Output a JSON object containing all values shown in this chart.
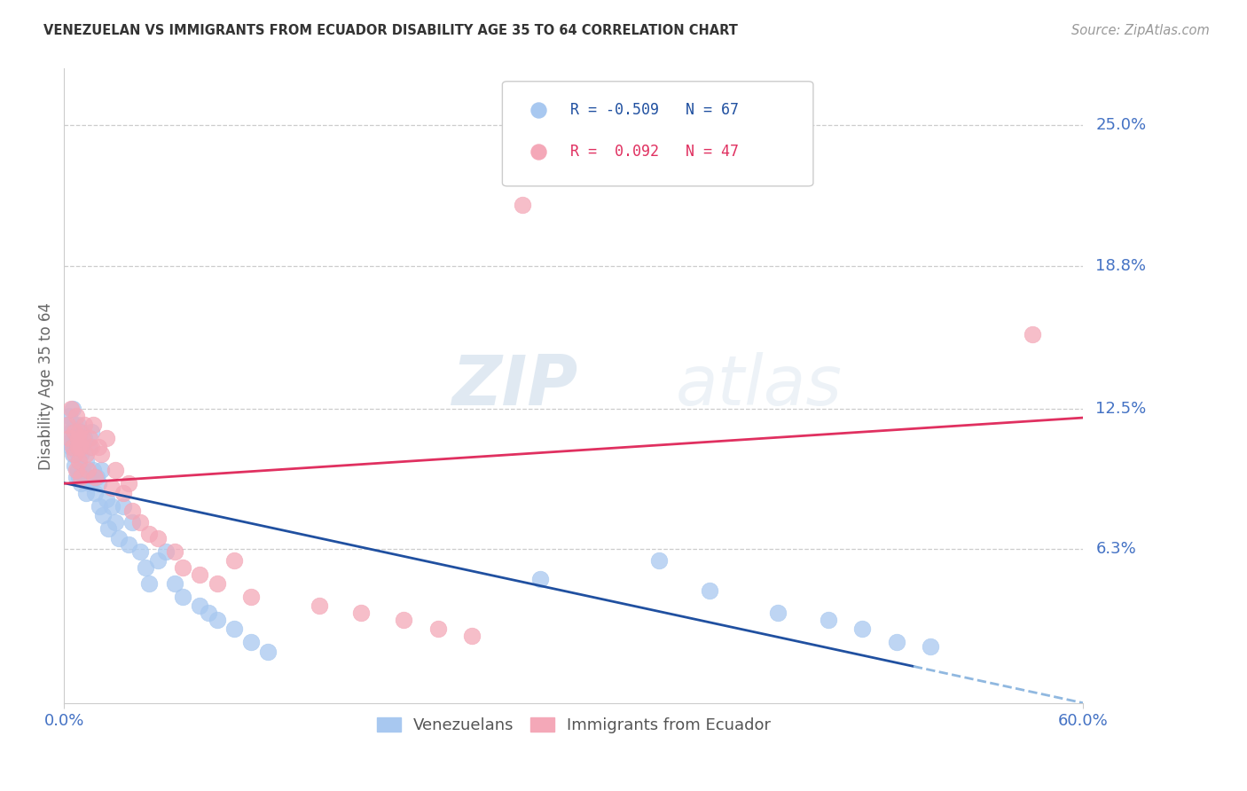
{
  "title": "VENEZUELAN VS IMMIGRANTS FROM ECUADOR DISABILITY AGE 35 TO 64 CORRELATION CHART",
  "source": "Source: ZipAtlas.com",
  "ylabel_label": "Disability Age 35 to 64",
  "ytick_labels": [
    "25.0%",
    "18.8%",
    "12.5%",
    "6.3%"
  ],
  "ytick_values": [
    0.25,
    0.188,
    0.125,
    0.063
  ],
  "xlim": [
    0.0,
    0.6
  ],
  "ylim": [
    -0.005,
    0.275
  ],
  "watermark": "ZIPatlas",
  "scatter_blue_color": "#a8c8f0",
  "scatter_pink_color": "#f4a8b8",
  "line_blue_color": "#2050a0",
  "line_pink_color": "#e03060",
  "line_blue_dashed_color": "#90b8e0",
  "axis_label_color": "#4472c4",
  "venezuelan_x": [
    0.002,
    0.003,
    0.003,
    0.004,
    0.004,
    0.005,
    0.005,
    0.005,
    0.006,
    0.006,
    0.006,
    0.007,
    0.007,
    0.008,
    0.008,
    0.008,
    0.009,
    0.009,
    0.01,
    0.01,
    0.01,
    0.011,
    0.011,
    0.012,
    0.012,
    0.013,
    0.013,
    0.014,
    0.015,
    0.015,
    0.016,
    0.017,
    0.018,
    0.019,
    0.02,
    0.021,
    0.022,
    0.023,
    0.025,
    0.026,
    0.028,
    0.03,
    0.032,
    0.035,
    0.038,
    0.04,
    0.045,
    0.048,
    0.05,
    0.055,
    0.06,
    0.065,
    0.07,
    0.08,
    0.085,
    0.09,
    0.1,
    0.11,
    0.12,
    0.28,
    0.35,
    0.38,
    0.42,
    0.45,
    0.47,
    0.49,
    0.51
  ],
  "venezuelan_y": [
    0.118,
    0.122,
    0.11,
    0.115,
    0.108,
    0.125,
    0.112,
    0.105,
    0.118,
    0.108,
    0.1,
    0.112,
    0.095,
    0.118,
    0.105,
    0.098,
    0.112,
    0.095,
    0.115,
    0.105,
    0.092,
    0.108,
    0.098,
    0.112,
    0.095,
    0.102,
    0.088,
    0.095,
    0.108,
    0.092,
    0.115,
    0.098,
    0.088,
    0.095,
    0.092,
    0.082,
    0.098,
    0.078,
    0.085,
    0.072,
    0.082,
    0.075,
    0.068,
    0.082,
    0.065,
    0.075,
    0.062,
    0.055,
    0.048,
    0.058,
    0.062,
    0.048,
    0.042,
    0.038,
    0.035,
    0.032,
    0.028,
    0.022,
    0.018,
    0.05,
    0.058,
    0.045,
    0.035,
    0.032,
    0.028,
    0.022,
    0.02
  ],
  "ecuador_x": [
    0.002,
    0.003,
    0.004,
    0.005,
    0.006,
    0.006,
    0.007,
    0.007,
    0.008,
    0.008,
    0.009,
    0.009,
    0.01,
    0.01,
    0.011,
    0.012,
    0.013,
    0.014,
    0.015,
    0.016,
    0.017,
    0.018,
    0.02,
    0.022,
    0.025,
    0.028,
    0.03,
    0.035,
    0.038,
    0.04,
    0.045,
    0.05,
    0.055,
    0.065,
    0.07,
    0.08,
    0.09,
    0.1,
    0.11,
    0.15,
    0.175,
    0.2,
    0.22,
    0.24,
    0.27,
    0.31,
    0.57
  ],
  "ecuador_y": [
    0.118,
    0.112,
    0.125,
    0.108,
    0.115,
    0.105,
    0.122,
    0.098,
    0.108,
    0.112,
    0.115,
    0.102,
    0.108,
    0.095,
    0.112,
    0.118,
    0.105,
    0.098,
    0.112,
    0.108,
    0.118,
    0.095,
    0.108,
    0.105,
    0.112,
    0.09,
    0.098,
    0.088,
    0.092,
    0.08,
    0.075,
    0.07,
    0.068,
    0.062,
    0.055,
    0.052,
    0.048,
    0.058,
    0.042,
    0.038,
    0.035,
    0.032,
    0.028,
    0.025,
    0.215,
    0.24,
    0.158
  ]
}
